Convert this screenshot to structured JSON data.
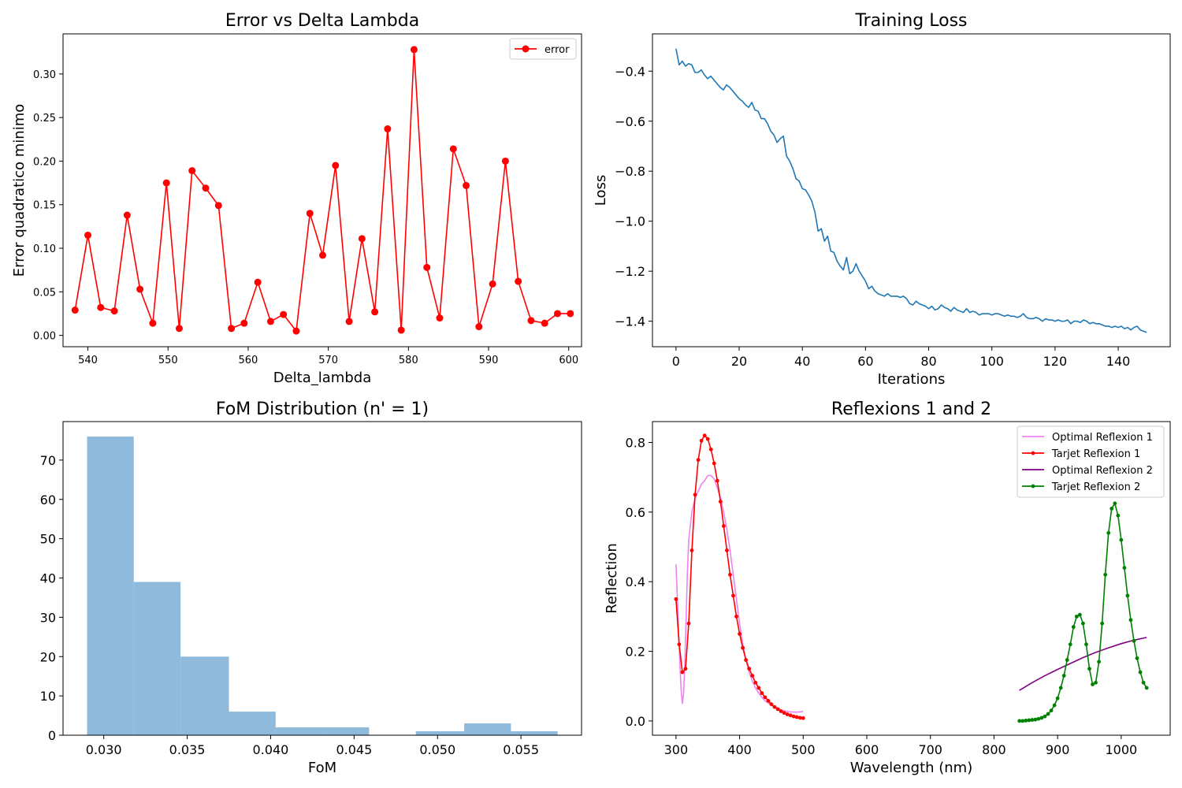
{
  "chart_data": [
    {
      "type": "line",
      "title": "Error vs Delta Lambda",
      "xlabel": "Delta_lambda",
      "ylabel": "Error quadratico minimo",
      "xlim": [
        536.9,
        601.6
      ],
      "ylim": [
        -0.013,
        0.346
      ],
      "xticks": [
        540,
        550,
        560,
        570,
        580,
        590,
        600
      ],
      "xtick_labels": [
        "540",
        "550",
        "560",
        "570",
        "580",
        "590",
        "600"
      ],
      "yticks": [
        0.0,
        0.05,
        0.1,
        0.15,
        0.2,
        0.25,
        0.3
      ],
      "ytick_labels": [
        "0.00",
        "0.05",
        "0.10",
        "0.15",
        "0.20",
        "0.25",
        "0.30"
      ],
      "legend": "top-right",
      "grid": false,
      "series": [
        {
          "name": "error",
          "color": "#ff0000",
          "marker": "circle",
          "x": [
            538.4,
            540.0,
            541.6,
            543.3,
            544.9,
            546.5,
            548.1,
            549.8,
            551.4,
            553.0,
            554.7,
            556.3,
            557.9,
            559.5,
            561.2,
            562.8,
            564.4,
            566.0,
            567.7,
            569.3,
            570.9,
            572.6,
            574.2,
            575.8,
            577.4,
            579.1,
            580.7,
            582.3,
            583.9,
            585.6,
            587.2,
            588.8,
            590.5,
            592.1,
            593.7,
            595.3,
            597.0,
            598.6,
            600.2
          ],
          "y": [
            0.029,
            0.115,
            0.032,
            0.028,
            0.138,
            0.053,
            0.014,
            0.175,
            0.008,
            0.189,
            0.169,
            0.149,
            0.008,
            0.014,
            0.061,
            0.016,
            0.024,
            0.005,
            0.14,
            0.092,
            0.195,
            0.016,
            0.111,
            0.027,
            0.237,
            0.006,
            0.328,
            0.078,
            0.02,
            0.214,
            0.172,
            0.01,
            0.059,
            0.2,
            0.062,
            0.017,
            0.014,
            0.025,
            0.025
          ]
        }
      ]
    },
    {
      "type": "line",
      "title": "Training Loss",
      "xlabel": "Iterations",
      "ylabel": "Loss",
      "xlim": [
        -7.45,
        156.45
      ],
      "ylim": [
        -1.502,
        -0.251
      ],
      "xticks": [
        0,
        20,
        40,
        60,
        80,
        100,
        120,
        140
      ],
      "xtick_labels": [
        "0",
        "20",
        "40",
        "60",
        "80",
        "100",
        "120",
        "140"
      ],
      "yticks": [
        -1.4,
        -1.2,
        -1.0,
        -0.8,
        -0.6,
        -0.4
      ],
      "ytick_labels": [
        "−1.4",
        "−1.2",
        "−1.0",
        "−0.8",
        "−0.6",
        "−0.4"
      ],
      "grid": false,
      "series": [
        {
          "color": "#1f77b4",
          "y": [
            -0.31,
            -0.375,
            -0.36,
            -0.38,
            -0.37,
            -0.375,
            -0.405,
            -0.405,
            -0.395,
            -0.415,
            -0.43,
            -0.42,
            -0.435,
            -0.45,
            -0.465,
            -0.475,
            -0.455,
            -0.465,
            -0.48,
            -0.495,
            -0.51,
            -0.52,
            -0.535,
            -0.545,
            -0.525,
            -0.555,
            -0.56,
            -0.59,
            -0.59,
            -0.61,
            -0.64,
            -0.655,
            -0.685,
            -0.67,
            -0.66,
            -0.74,
            -0.76,
            -0.79,
            -0.83,
            -0.84,
            -0.87,
            -0.875,
            -0.895,
            -0.92,
            -0.965,
            -1.04,
            -1.03,
            -1.08,
            -1.06,
            -1.12,
            -1.125,
            -1.16,
            -1.18,
            -1.195,
            -1.145,
            -1.21,
            -1.2,
            -1.17,
            -1.2,
            -1.22,
            -1.24,
            -1.27,
            -1.26,
            -1.28,
            -1.29,
            -1.295,
            -1.3,
            -1.29,
            -1.3,
            -1.3,
            -1.3,
            -1.305,
            -1.3,
            -1.31,
            -1.33,
            -1.335,
            -1.32,
            -1.33,
            -1.335,
            -1.34,
            -1.35,
            -1.34,
            -1.355,
            -1.35,
            -1.335,
            -1.345,
            -1.35,
            -1.36,
            -1.345,
            -1.355,
            -1.36,
            -1.365,
            -1.35,
            -1.365,
            -1.36,
            -1.365,
            -1.375,
            -1.37,
            -1.37,
            -1.37,
            -1.375,
            -1.37,
            -1.37,
            -1.375,
            -1.38,
            -1.375,
            -1.38,
            -1.38,
            -1.385,
            -1.38,
            -1.37,
            -1.385,
            -1.39,
            -1.39,
            -1.385,
            -1.39,
            -1.4,
            -1.39,
            -1.395,
            -1.395,
            -1.4,
            -1.395,
            -1.4,
            -1.4,
            -1.395,
            -1.41,
            -1.4,
            -1.4,
            -1.405,
            -1.395,
            -1.4,
            -1.41,
            -1.405,
            -1.41,
            -1.41,
            -1.415,
            -1.42,
            -1.42,
            -1.425,
            -1.42,
            -1.425,
            -1.42,
            -1.43,
            -1.425,
            -1.435,
            -1.425,
            -1.42,
            -1.435,
            -1.44,
            -1.445
          ]
        }
      ]
    },
    {
      "type": "bar",
      "title": "FoM Distribution (n' = 1)",
      "xlabel": "FoM",
      "ylabel": "",
      "xlim": [
        0.02756,
        0.05863
      ],
      "ylim": [
        0,
        79.8
      ],
      "xticks": [
        0.03,
        0.035,
        0.04,
        0.045,
        0.05,
        0.055
      ],
      "xtick_labels": [
        "0.030",
        "0.035",
        "0.040",
        "0.045",
        "0.050",
        "0.055"
      ],
      "yticks": [
        0,
        10,
        20,
        30,
        40,
        50,
        60,
        70
      ],
      "ytick_labels": [
        "0",
        "10",
        "20",
        "30",
        "40",
        "50",
        "60",
        "70"
      ],
      "color": "#8fbadb",
      "bin_edges": [
        0.029,
        0.0318,
        0.0346,
        0.0375,
        0.0403,
        0.0431,
        0.0459,
        0.0487,
        0.0516,
        0.0544,
        0.0572
      ],
      "counts": [
        76,
        39,
        20,
        6,
        2,
        2,
        0,
        1,
        3,
        1
      ]
    },
    {
      "type": "line",
      "title": "Reflexions 1 and 2",
      "xlabel": "Wavelength (nm)",
      "ylabel": "Reflection",
      "xlim": [
        263,
        1077
      ],
      "ylim": [
        -0.041,
        0.86
      ],
      "xticks": [
        300,
        400,
        500,
        600,
        700,
        800,
        900,
        1000
      ],
      "xtick_labels": [
        "300",
        "400",
        "500",
        "600",
        "700",
        "800",
        "900",
        "1000"
      ],
      "yticks": [
        0.0,
        0.2,
        0.4,
        0.6,
        0.8
      ],
      "ytick_labels": [
        "0.0",
        "0.2",
        "0.4",
        "0.6",
        "0.8"
      ],
      "legend": "top-right",
      "grid": false,
      "series": [
        {
          "name": "Optimal Reflexion 1",
          "color": "#ee82ee",
          "marker": "none",
          "x": [
            300,
            302,
            304,
            306,
            308,
            310,
            312,
            314,
            316,
            318,
            320,
            325,
            330,
            335,
            340,
            345,
            350,
            355,
            360,
            365,
            370,
            375,
            380,
            385,
            390,
            395,
            400,
            405,
            410,
            415,
            420,
            425,
            430,
            435,
            440,
            450,
            460,
            470,
            480,
            490,
            500
          ],
          "y": [
            0.45,
            0.36,
            0.26,
            0.17,
            0.09,
            0.05,
            0.08,
            0.17,
            0.3,
            0.43,
            0.52,
            0.6,
            0.64,
            0.66,
            0.68,
            0.69,
            0.705,
            0.705,
            0.695,
            0.67,
            0.64,
            0.6,
            0.55,
            0.49,
            0.42,
            0.35,
            0.28,
            0.22,
            0.175,
            0.14,
            0.115,
            0.095,
            0.08,
            0.068,
            0.058,
            0.045,
            0.035,
            0.029,
            0.026,
            0.025,
            0.027
          ]
        },
        {
          "name": "Tarjet Reflexion 1",
          "color": "#ff0000",
          "marker": "circle",
          "x": [
            300,
            305,
            310,
            315,
            320,
            325,
            330,
            335,
            340,
            345,
            350,
            355,
            360,
            365,
            370,
            375,
            380,
            385,
            390,
            395,
            400,
            405,
            410,
            415,
            420,
            425,
            430,
            435,
            440,
            445,
            450,
            455,
            460,
            465,
            470,
            475,
            480,
            485,
            490,
            495,
            500
          ],
          "y": [
            0.35,
            0.22,
            0.14,
            0.15,
            0.28,
            0.49,
            0.65,
            0.75,
            0.805,
            0.82,
            0.81,
            0.78,
            0.74,
            0.69,
            0.63,
            0.56,
            0.49,
            0.42,
            0.36,
            0.3,
            0.25,
            0.21,
            0.175,
            0.15,
            0.13,
            0.11,
            0.095,
            0.08,
            0.068,
            0.058,
            0.048,
            0.04,
            0.034,
            0.028,
            0.023,
            0.019,
            0.016,
            0.013,
            0.011,
            0.009,
            0.008
          ]
        },
        {
          "name": "Optimal Reflexion 2",
          "color": "#800080",
          "marker": "none",
          "x": [
            840,
            860,
            880,
            900,
            920,
            940,
            960,
            980,
            1000,
            1020,
            1040
          ],
          "y": [
            0.088,
            0.11,
            0.13,
            0.148,
            0.165,
            0.182,
            0.197,
            0.21,
            0.222,
            0.232,
            0.24
          ]
        },
        {
          "name": "Tarjet Reflexion 2",
          "color": "#008000",
          "marker": "circle",
          "x": [
            840,
            845,
            850,
            855,
            860,
            865,
            870,
            875,
            880,
            885,
            890,
            895,
            900,
            905,
            910,
            915,
            920,
            925,
            930,
            935,
            940,
            945,
            950,
            955,
            960,
            965,
            970,
            975,
            980,
            985,
            990,
            995,
            1000,
            1005,
            1010,
            1015,
            1020,
            1025,
            1030,
            1035,
            1040
          ],
          "y": [
            0.0,
            0.0,
            0.001,
            0.002,
            0.003,
            0.004,
            0.006,
            0.009,
            0.013,
            0.02,
            0.03,
            0.045,
            0.065,
            0.095,
            0.13,
            0.175,
            0.22,
            0.27,
            0.3,
            0.305,
            0.28,
            0.22,
            0.15,
            0.105,
            0.11,
            0.17,
            0.28,
            0.42,
            0.54,
            0.61,
            0.625,
            0.59,
            0.52,
            0.44,
            0.36,
            0.29,
            0.23,
            0.18,
            0.14,
            0.11,
            0.095
          ]
        }
      ]
    }
  ]
}
